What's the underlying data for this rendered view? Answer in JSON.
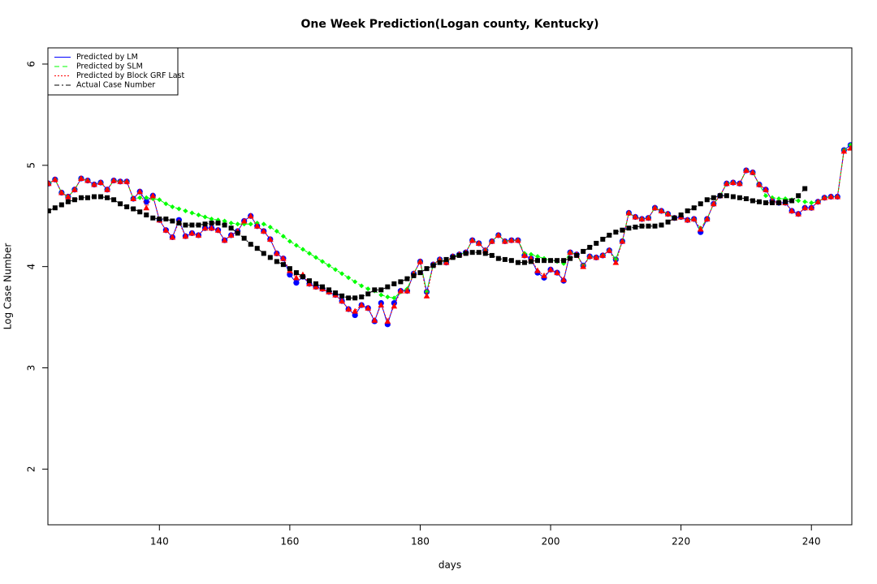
{
  "chart_data": {
    "type": "line",
    "title": "One Week Prediction(Logan county, Kentucky)",
    "x_label": "days",
    "y_label": "Log Case Number",
    "x": [
      123,
      124,
      125,
      126,
      127,
      128,
      129,
      130,
      131,
      132,
      133,
      134,
      135,
      136,
      137,
      138,
      139,
      140,
      141,
      142,
      143,
      144,
      145,
      146,
      147,
      148,
      149,
      150,
      151,
      152,
      153,
      154,
      155,
      156,
      157,
      158,
      159,
      160,
      161,
      162,
      163,
      164,
      165,
      166,
      167,
      168,
      169,
      170,
      171,
      172,
      173,
      174,
      175,
      176,
      177,
      178,
      179,
      180,
      181,
      182,
      183,
      184,
      185,
      186,
      187,
      188,
      189,
      190,
      191,
      192,
      193,
      194,
      195,
      196,
      197,
      198,
      199,
      200,
      201,
      202,
      203,
      204,
      205,
      206,
      207,
      208,
      209,
      210,
      211,
      212,
      213,
      214,
      215,
      216,
      217,
      218,
      219,
      220,
      221,
      222,
      223,
      224,
      225,
      226,
      227,
      228,
      229,
      230,
      231,
      232,
      233,
      234,
      235,
      236,
      237,
      238,
      239,
      240,
      241,
      242,
      243,
      244,
      245,
      246
    ],
    "series": [
      {
        "name": "Predicted by LM",
        "color": "#0000ff",
        "values": [
          4.82,
          4.86,
          4.73,
          4.69,
          4.76,
          4.87,
          4.85,
          4.81,
          4.83,
          4.76,
          4.85,
          4.84,
          4.84,
          4.67,
          4.74,
          4.64,
          4.7,
          4.46,
          4.36,
          4.29,
          4.46,
          4.3,
          4.33,
          4.31,
          4.38,
          4.38,
          4.36,
          4.26,
          4.31,
          4.35,
          4.45,
          4.5,
          4.4,
          4.35,
          4.27,
          4.13,
          4.08,
          3.92,
          3.84,
          3.9,
          3.83,
          3.8,
          3.78,
          3.75,
          3.72,
          3.66,
          3.58,
          3.52,
          3.62,
          3.59,
          3.46,
          3.64,
          3.43,
          3.64,
          3.76,
          3.76,
          3.93,
          4.05,
          3.75,
          4.02,
          4.07,
          4.04,
          4.1,
          4.12,
          4.14,
          4.26,
          4.23,
          4.16,
          4.25,
          4.31,
          4.25,
          4.26,
          4.26,
          4.11,
          4.08,
          3.94,
          3.89,
          3.97,
          3.94,
          3.86,
          4.14,
          4.12,
          4.01,
          4.1,
          4.09,
          4.11,
          4.16,
          4.07,
          4.25,
          4.53,
          4.49,
          4.47,
          4.48,
          4.58,
          4.55,
          4.52,
          4.48,
          4.49,
          4.46,
          4.47,
          4.34,
          4.47,
          4.62,
          4.7,
          4.82,
          4.83,
          4.82,
          4.95,
          4.93,
          4.81,
          4.76,
          4.65,
          4.63,
          4.63,
          4.55,
          4.52,
          4.58,
          4.58,
          4.64,
          4.68,
          4.69,
          4.69,
          5.15,
          5.2
        ]
      },
      {
        "name": "Predicted by SLM",
        "color": "#00ff00",
        "values": [
          4.82,
          4.86,
          4.73,
          4.69,
          4.76,
          4.87,
          4.85,
          4.81,
          4.83,
          4.76,
          4.85,
          4.84,
          4.84,
          4.67,
          4.68,
          4.68,
          4.67,
          4.66,
          4.62,
          4.59,
          4.57,
          4.55,
          4.53,
          4.51,
          4.49,
          4.47,
          4.46,
          4.45,
          4.43,
          4.42,
          4.42,
          4.42,
          4.43,
          4.42,
          4.39,
          4.35,
          4.3,
          4.25,
          4.21,
          4.17,
          4.13,
          4.09,
          4.05,
          4.01,
          3.97,
          3.93,
          3.89,
          3.85,
          3.81,
          3.78,
          3.76,
          3.72,
          3.7,
          3.69,
          3.75,
          3.78,
          3.93,
          4.05,
          3.75,
          4.02,
          4.07,
          4.04,
          4.1,
          4.12,
          4.14,
          4.26,
          4.23,
          4.16,
          4.25,
          4.31,
          4.25,
          4.26,
          4.26,
          4.13,
          4.12,
          4.1,
          4.08,
          4.06,
          4.05,
          4.03,
          4.14,
          4.12,
          4.01,
          4.1,
          4.09,
          4.11,
          4.16,
          4.07,
          4.25,
          4.53,
          4.49,
          4.47,
          4.48,
          4.58,
          4.55,
          4.52,
          4.48,
          4.49,
          4.46,
          4.47,
          4.38,
          4.47,
          4.62,
          4.7,
          4.82,
          4.83,
          4.82,
          4.95,
          4.93,
          4.81,
          4.7,
          4.68,
          4.67,
          4.67,
          4.66,
          4.65,
          4.64,
          4.63,
          4.64,
          4.68,
          4.69,
          4.69,
          5.15,
          5.2
        ]
      },
      {
        "name": "Predicted by Block GRF Last",
        "color": "#ff0000",
        "values": [
          4.82,
          4.86,
          4.73,
          4.69,
          4.76,
          4.87,
          4.85,
          4.81,
          4.83,
          4.76,
          4.85,
          4.84,
          4.84,
          4.67,
          4.74,
          4.58,
          4.7,
          4.46,
          4.36,
          4.29,
          4.44,
          4.3,
          4.33,
          4.31,
          4.38,
          4.38,
          4.36,
          4.26,
          4.31,
          4.35,
          4.45,
          4.5,
          4.4,
          4.35,
          4.27,
          4.13,
          4.08,
          3.96,
          3.89,
          3.92,
          3.83,
          3.8,
          3.78,
          3.75,
          3.72,
          3.66,
          3.58,
          3.56,
          3.62,
          3.59,
          3.47,
          3.62,
          3.46,
          3.61,
          3.76,
          3.76,
          3.93,
          4.05,
          3.71,
          4.02,
          4.07,
          4.04,
          4.1,
          4.12,
          4.14,
          4.26,
          4.23,
          4.16,
          4.25,
          4.31,
          4.25,
          4.26,
          4.26,
          4.11,
          4.08,
          3.96,
          3.91,
          3.97,
          3.94,
          3.87,
          4.14,
          4.12,
          4.0,
          4.1,
          4.09,
          4.11,
          4.16,
          4.04,
          4.25,
          4.53,
          4.49,
          4.47,
          4.48,
          4.58,
          4.55,
          4.52,
          4.48,
          4.49,
          4.46,
          4.47,
          4.37,
          4.47,
          4.62,
          4.7,
          4.82,
          4.83,
          4.82,
          4.95,
          4.93,
          4.81,
          4.76,
          4.65,
          4.63,
          4.63,
          4.55,
          4.52,
          4.58,
          4.58,
          4.64,
          4.68,
          4.69,
          4.69,
          5.14,
          5.17
        ]
      },
      {
        "name": "Actual Case Number",
        "color": "#000000",
        "values": [
          4.55,
          4.58,
          4.61,
          4.64,
          4.66,
          4.68,
          4.68,
          4.69,
          4.69,
          4.68,
          4.66,
          4.62,
          4.59,
          4.57,
          4.54,
          4.51,
          4.48,
          4.47,
          4.47,
          4.45,
          4.43,
          4.41,
          4.41,
          4.41,
          4.42,
          4.43,
          4.43,
          4.41,
          4.38,
          4.33,
          4.28,
          4.22,
          4.18,
          4.13,
          4.09,
          4.05,
          4.02,
          3.98,
          3.94,
          3.9,
          3.86,
          3.83,
          3.8,
          3.77,
          3.74,
          3.71,
          3.69,
          3.69,
          3.7,
          3.73,
          3.77,
          3.77,
          3.8,
          3.83,
          3.85,
          3.88,
          3.91,
          3.94,
          3.98,
          4.01,
          4.04,
          4.07,
          4.09,
          4.11,
          4.13,
          4.14,
          4.14,
          4.13,
          4.11,
          4.08,
          4.07,
          4.06,
          4.04,
          4.04,
          4.05,
          4.06,
          4.06,
          4.06,
          4.06,
          4.06,
          4.08,
          4.11,
          4.15,
          4.19,
          4.23,
          4.27,
          4.31,
          4.34,
          4.36,
          4.38,
          4.39,
          4.4,
          4.4,
          4.4,
          4.41,
          4.44,
          4.48,
          4.51,
          4.55,
          4.58,
          4.62,
          4.66,
          4.68,
          4.7,
          4.7,
          4.69,
          4.68,
          4.67,
          4.65,
          4.64,
          4.63,
          4.63,
          4.63,
          4.64,
          4.65,
          4.7,
          4.77,
          null,
          null,
          null,
          null,
          null,
          null,
          null
        ]
      }
    ],
    "xlim": [
      122.9,
      246.2
    ],
    "ylim": [
      1.45,
      6.16
    ],
    "xticks": [
      140,
      160,
      180,
      200,
      220,
      240
    ],
    "yticks": [
      2,
      3,
      4,
      5,
      6
    ],
    "legend": "topleft"
  }
}
